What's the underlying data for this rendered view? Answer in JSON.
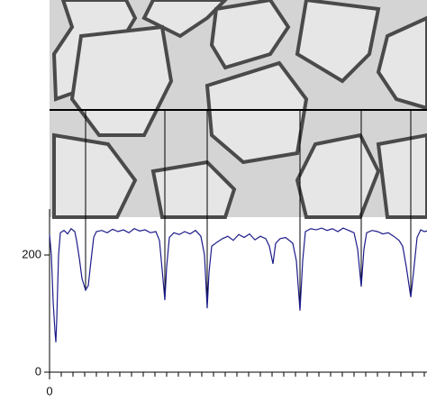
{
  "chart_data": {
    "type": "line",
    "x": [
      0,
      2,
      4,
      6,
      7,
      8,
      10,
      12,
      16,
      20,
      24,
      28,
      30,
      33,
      36,
      40,
      43,
      46,
      49,
      52,
      58,
      64,
      70,
      76,
      82,
      88,
      94,
      100,
      106,
      112,
      118,
      122,
      125,
      128,
      130,
      133,
      138,
      144,
      150,
      156,
      162,
      168,
      172,
      175,
      177,
      180,
      186,
      192,
      198,
      204,
      210,
      216,
      222,
      228,
      234,
      240,
      244,
      248,
      251,
      256,
      262,
      266,
      270,
      274,
      278,
      281,
      284,
      290,
      296,
      302,
      308,
      314,
      320,
      326,
      332,
      338,
      342,
      346,
      349,
      352,
      358,
      364,
      370,
      376,
      382,
      388,
      392,
      396,
      401,
      404,
      408,
      412,
      416,
      419
    ],
    "series": [
      {
        "color": "#1c1c8a",
        "values": [
          235,
          200,
          120,
          70,
          51,
          90,
          200,
          238,
          242,
          236,
          245,
          240,
          225,
          195,
          160,
          140,
          148,
          190,
          230,
          240,
          242,
          238,
          244,
          240,
          243,
          238,
          245,
          241,
          243,
          238,
          240,
          225,
          175,
          123,
          180,
          230,
          238,
          235,
          240,
          236,
          242,
          232,
          200,
          109,
          170,
          215,
          222,
          228,
          232,
          225,
          235,
          230,
          236,
          226,
          232,
          228,
          215,
          185,
          220,
          228,
          230,
          225,
          220,
          190,
          105,
          190,
          240,
          245,
          243,
          246,
          242,
          245,
          240,
          246,
          242,
          238,
          210,
          146,
          210,
          238,
          242,
          240,
          236,
          238,
          232,
          225,
          215,
          180,
          128,
          170,
          230,
          243,
          240,
          241
        ]
      }
    ],
    "xlim": [
      0,
      419
    ],
    "xticks": [
      0
    ],
    "xticks_minor": [
      13,
      26,
      39,
      52,
      65,
      78,
      91,
      104,
      117,
      130,
      143,
      156,
      169,
      182,
      195,
      208,
      221,
      234,
      247,
      260,
      273,
      286,
      299,
      312,
      325,
      338,
      351,
      364,
      377,
      390,
      403,
      416
    ],
    "ylim": [
      0,
      280
    ],
    "yticks": [
      0,
      200
    ]
  }
}
